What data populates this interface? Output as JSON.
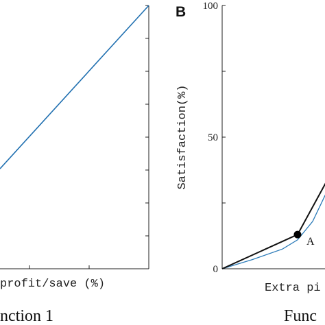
{
  "chart_data": [
    {
      "type": "line",
      "xlabel": "profit/save (%)",
      "title": "nction 1",
      "series": [
        {
          "color": "#1f6fb0",
          "x": [
            0,
            100
          ],
          "y": [
            38,
            100
          ]
        }
      ]
    },
    {
      "type": "line",
      "panel_letter": "B",
      "ylabel": "Satisfaction(%)",
      "xlabel": "Extra pi",
      "title": "Func",
      "yticks": [
        "0",
        "50",
        "100"
      ],
      "ylim": [
        0,
        100
      ],
      "series": [
        {
          "color": "#111111",
          "x": [
            0,
            100,
            140
          ],
          "y": [
            0,
            13,
            34
          ]
        },
        {
          "color": "#2a7ab8",
          "x": [
            0,
            40,
            80,
            100,
            120,
            140
          ],
          "y": [
            0,
            3.5,
            7.5,
            11,
            18,
            30
          ]
        }
      ],
      "point": {
        "label": "A",
        "x": 100,
        "y": 13
      }
    }
  ]
}
